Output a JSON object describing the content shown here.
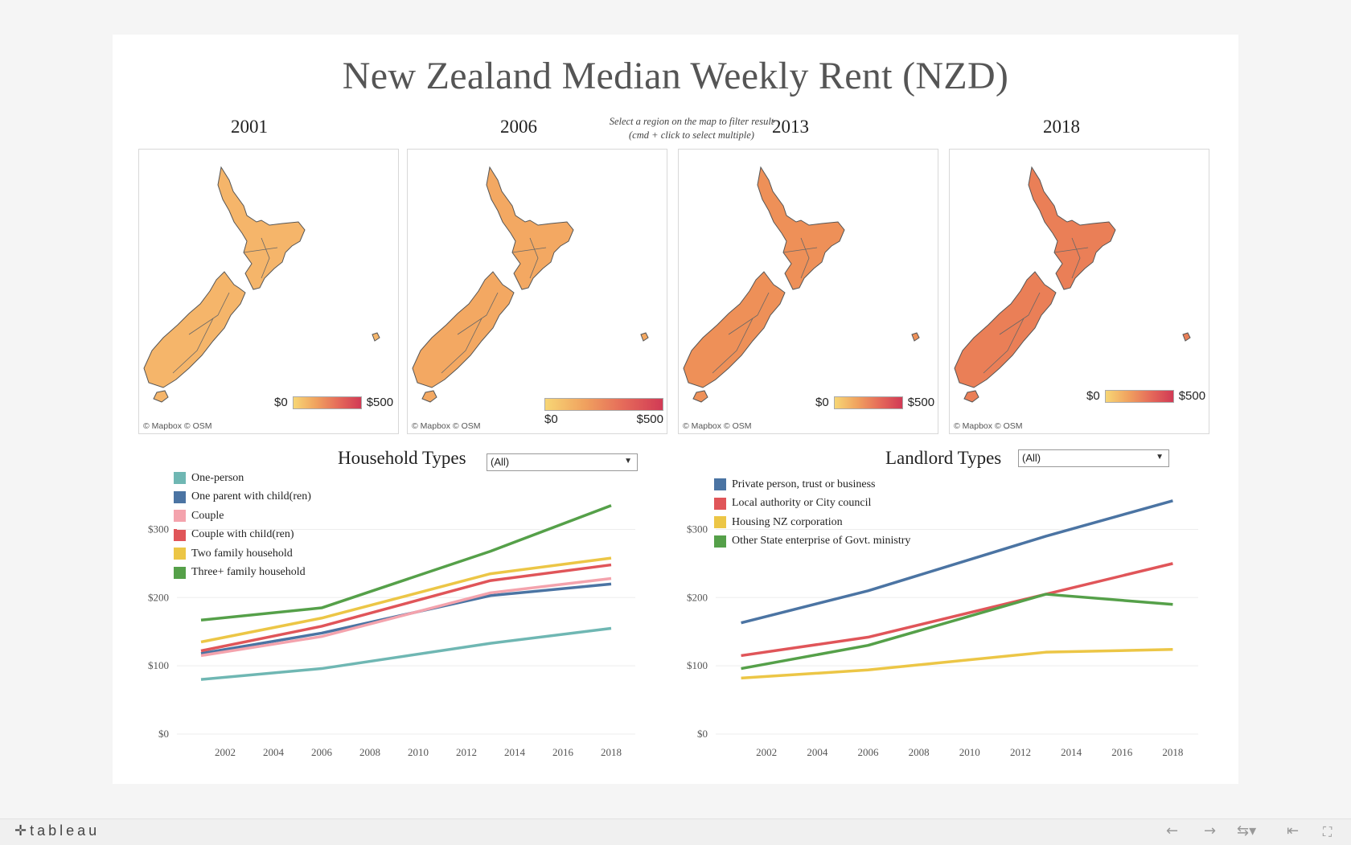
{
  "title": "New Zealand Median Weekly Rent (NZD)",
  "filter_hint": {
    "line1": "Select a region on the map to filter result",
    "line2": "(cmd + click to select multiple)"
  },
  "maps": [
    {
      "year": "2001",
      "fill": "#f5b56a",
      "legend_min": "$0",
      "legend_max": "$500",
      "attribution": "© Mapbox  © OSM"
    },
    {
      "year": "2006",
      "fill": "#f3a862",
      "legend_min": "$0",
      "legend_max": "$500",
      "attribution": "© Mapbox  © OSM"
    },
    {
      "year": "2013",
      "fill": "#ee9058",
      "legend_min": "$0",
      "legend_max": "$500",
      "attribution": "© Mapbox  © OSM"
    },
    {
      "year": "2018",
      "fill": "#ea7f57",
      "legend_min": "$0",
      "legend_max": "$500",
      "attribution": "© Mapbox  © OSM"
    }
  ],
  "household": {
    "title": "Household Types",
    "dropdown_value": "(All)"
  },
  "landlord": {
    "title": "Landlord Types",
    "dropdown_value": "(All)"
  },
  "chart_data": [
    {
      "type": "line",
      "title": "Household Types",
      "x": [
        2001,
        2006,
        2013,
        2018
      ],
      "xticks": [
        "2002",
        "2004",
        "2006",
        "2008",
        "2010",
        "2012",
        "2014",
        "2016",
        "2018"
      ],
      "yticks": [
        "$0",
        "$100",
        "$200",
        "$300"
      ],
      "ylim": [
        0,
        300
      ],
      "grid": true,
      "legend_position": "top-left",
      "series": [
        {
          "name": "One-person",
          "color": "#6fb7b3",
          "values": [
            80,
            96,
            133,
            155
          ]
        },
        {
          "name": "One parent with child(ren)",
          "color": "#4b74a3",
          "values": [
            118,
            148,
            203,
            220
          ]
        },
        {
          "name": "Couple",
          "color": "#f4a3ad",
          "values": [
            115,
            143,
            207,
            228
          ]
        },
        {
          "name": "Couple with child(ren)",
          "color": "#e05559",
          "values": [
            122,
            158,
            225,
            248
          ]
        },
        {
          "name": "Two family household",
          "color": "#ecc646",
          "values": [
            135,
            170,
            235,
            258
          ]
        },
        {
          "name": "Three+ family household",
          "color": "#55a049",
          "values": [
            167,
            185,
            268,
            335
          ]
        }
      ]
    },
    {
      "type": "line",
      "title": "Landlord Types",
      "x": [
        2001,
        2006,
        2013,
        2018
      ],
      "xticks": [
        "2002",
        "2004",
        "2006",
        "2008",
        "2010",
        "2012",
        "2014",
        "2016",
        "2018"
      ],
      "yticks": [
        "$0",
        "$100",
        "$200",
        "$300"
      ],
      "ylim": [
        0,
        300
      ],
      "grid": true,
      "legend_position": "top-left",
      "series": [
        {
          "name": "Private person, trust or business",
          "color": "#4b74a3",
          "values": [
            163,
            210,
            290,
            342
          ]
        },
        {
          "name": "Local authority or City council",
          "color": "#e05559",
          "values": [
            115,
            142,
            205,
            250
          ]
        },
        {
          "name": "Housing NZ corporation",
          "color": "#ecc646",
          "values": [
            82,
            94,
            120,
            124
          ]
        },
        {
          "name": "Other State enterprise of Govt. ministry",
          "color": "#55a049",
          "values": [
            96,
            130,
            205,
            190
          ]
        }
      ]
    }
  ],
  "footer": {
    "brand": "tableau",
    "brand_icon": "tableau-logo-icon",
    "nav": [
      "back-arrow-icon",
      "forward-arrow-icon",
      "share-icon",
      "reset-icon",
      "fullscreen-icon"
    ]
  }
}
